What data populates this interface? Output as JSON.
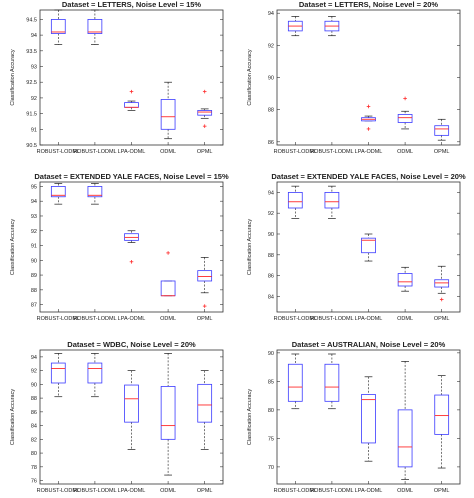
{
  "chart_data": [
    {
      "type": "box",
      "title": "Dataset = LETTERS, Noise Level = 15%",
      "xlabel": "",
      "ylabel": "Classification Accuracy",
      "categories": [
        "ROBUST-LODML",
        "ROBUST-LODML",
        "LPA-ODML",
        "ODML",
        "OPML"
      ],
      "ylim": [
        90.5,
        94.8
      ],
      "yticks": [
        90.5,
        91,
        91.5,
        92,
        92.5,
        93,
        93.5,
        94,
        94.5
      ],
      "boxes": [
        {
          "min": 93.7,
          "q1": 94.05,
          "median": 94.1,
          "q3": 94.5,
          "max": 94.8,
          "outliers": []
        },
        {
          "min": 93.7,
          "q1": 94.05,
          "median": 94.1,
          "q3": 94.5,
          "max": 94.8,
          "outliers": []
        },
        {
          "min": 91.6,
          "q1": 91.7,
          "median": 91.7,
          "q3": 91.85,
          "max": 91.9,
          "outliers": [
            92.2
          ]
        },
        {
          "min": 90.7,
          "q1": 91.0,
          "median": 91.4,
          "q3": 91.95,
          "max": 92.5,
          "outliers": []
        },
        {
          "min": 91.35,
          "q1": 91.45,
          "median": 91.55,
          "q3": 91.6,
          "max": 91.65,
          "outliers": [
            92.2,
            91.1
          ]
        }
      ]
    },
    {
      "type": "box",
      "title": "Dataset = LETTERS, Noise Level = 20%",
      "xlabel": "",
      "ylabel": "Classification Accuracy",
      "categories": [
        "ROBUST-LODML",
        "ROBUST-LODML",
        "LPA-ODML",
        "ODML",
        "OPML"
      ],
      "ylim": [
        85.8,
        94.2
      ],
      "yticks": [
        86,
        88,
        90,
        92,
        94
      ],
      "boxes": [
        {
          "min": 92.6,
          "q1": 92.9,
          "median": 93.2,
          "q3": 93.5,
          "max": 93.8,
          "outliers": []
        },
        {
          "min": 92.6,
          "q1": 92.9,
          "median": 93.2,
          "q3": 93.5,
          "max": 93.8,
          "outliers": []
        },
        {
          "min": 87.3,
          "q1": 87.3,
          "median": 87.4,
          "q3": 87.5,
          "max": 87.6,
          "outliers": [
            88.2,
            86.8
          ]
        },
        {
          "min": 86.8,
          "q1": 87.2,
          "median": 87.5,
          "q3": 87.7,
          "max": 87.9,
          "outliers": [
            88.7
          ]
        },
        {
          "min": 86.1,
          "q1": 86.4,
          "median": 86.8,
          "q3": 87.0,
          "max": 87.4,
          "outliers": []
        }
      ]
    },
    {
      "type": "box",
      "title": "Dataset = EXTENDED YALE FACES, Noise Level = 15%",
      "xlabel": "",
      "ylabel": "Classification Accuracy",
      "categories": [
        "ROBUST-LODML",
        "ROBUST-LODML",
        "LPA-ODML",
        "ODML",
        "OPML"
      ],
      "ylim": [
        86.5,
        95.3
      ],
      "yticks": [
        87,
        88,
        89,
        90,
        91,
        92,
        93,
        94,
        95
      ],
      "boxes": [
        {
          "min": 93.8,
          "q1": 94.3,
          "median": 94.4,
          "q3": 95.0,
          "max": 95.2,
          "outliers": []
        },
        {
          "min": 93.8,
          "q1": 94.3,
          "median": 94.4,
          "q3": 95.0,
          "max": 95.2,
          "outliers": []
        },
        {
          "min": 91.2,
          "q1": 91.35,
          "median": 91.55,
          "q3": 91.8,
          "max": 92.0,
          "outliers": [
            89.9
          ]
        },
        {
          "min": 87.6,
          "q1": 87.6,
          "median": 87.6,
          "q3": 88.6,
          "max": 88.6,
          "outliers": [
            90.5
          ]
        },
        {
          "min": 87.8,
          "q1": 88.6,
          "median": 88.9,
          "q3": 89.3,
          "max": 90.2,
          "outliers": [
            86.9
          ]
        }
      ]
    },
    {
      "type": "box",
      "title": "Dataset = EXTENDED YALE FACES, Noise Level = 20%",
      "xlabel": "",
      "ylabel": "Classification Accuracy",
      "categories": [
        "ROBUST-LODML",
        "ROBUST-LODML",
        "LPA-ODML",
        "ODML",
        "OPML"
      ],
      "ylim": [
        82.5,
        95.0
      ],
      "yticks": [
        84,
        86,
        88,
        90,
        92,
        94
      ],
      "boxes": [
        {
          "min": 91.5,
          "q1": 92.5,
          "median": 93.1,
          "q3": 94.0,
          "max": 94.6,
          "outliers": []
        },
        {
          "min": 91.5,
          "q1": 92.5,
          "median": 93.1,
          "q3": 94.0,
          "max": 94.6,
          "outliers": []
        },
        {
          "min": 87.4,
          "q1": 88.2,
          "median": 89.4,
          "q3": 89.6,
          "max": 90.0,
          "outliers": []
        },
        {
          "min": 84.5,
          "q1": 85.0,
          "median": 85.4,
          "q3": 86.2,
          "max": 86.8,
          "outliers": []
        },
        {
          "min": 84.3,
          "q1": 84.9,
          "median": 85.3,
          "q3": 85.6,
          "max": 86.9,
          "outliers": [
            83.7
          ]
        }
      ]
    },
    {
      "type": "box",
      "title": "Dataset = WDBC, Noise Level = 20%",
      "xlabel": "",
      "ylabel": "Classification Accuracy",
      "categories": [
        "ROBUST-LODML",
        "ROBUST-LODML",
        "LPA-ODML",
        "ODML",
        "OPML"
      ],
      "ylim": [
        75.5,
        95.0
      ],
      "yticks": [
        76,
        78,
        80,
        82,
        84,
        86,
        88,
        90,
        92,
        94
      ],
      "boxes": [
        {
          "min": 88.2,
          "q1": 90.2,
          "median": 92.3,
          "q3": 93.1,
          "max": 94.5,
          "outliers": []
        },
        {
          "min": 88.2,
          "q1": 90.2,
          "median": 92.3,
          "q3": 93.1,
          "max": 94.5,
          "outliers": []
        },
        {
          "min": 80.5,
          "q1": 84.5,
          "median": 87.9,
          "q3": 89.9,
          "max": 92.0,
          "outliers": []
        },
        {
          "min": 76.8,
          "q1": 82.0,
          "median": 84.0,
          "q3": 89.7,
          "max": 94.5,
          "outliers": []
        },
        {
          "min": 80.5,
          "q1": 84.5,
          "median": 87.0,
          "q3": 90.0,
          "max": 92.0,
          "outliers": []
        }
      ]
    },
    {
      "type": "box",
      "title": "Dataset = AUSTRALIAN, Noise Level = 20%",
      "xlabel": "",
      "ylabel": "Classification Accuracy",
      "categories": [
        "ROBUST-LODML",
        "ROBUST-LODML",
        "LPA-ODML",
        "ODML",
        "OPML"
      ],
      "ylim": [
        67.0,
        90.5
      ],
      "yticks": [
        70,
        75,
        80,
        85,
        90
      ],
      "boxes": [
        {
          "min": 80.2,
          "q1": 81.5,
          "median": 84.0,
          "q3": 88.0,
          "max": 89.8,
          "outliers": []
        },
        {
          "min": 80.2,
          "q1": 81.5,
          "median": 84.0,
          "q3": 88.0,
          "max": 89.8,
          "outliers": []
        },
        {
          "min": 71.0,
          "q1": 74.2,
          "median": 81.8,
          "q3": 82.7,
          "max": 85.8,
          "outliers": []
        },
        {
          "min": 67.8,
          "q1": 70.0,
          "median": 73.5,
          "q3": 80.0,
          "max": 88.5,
          "outliers": []
        },
        {
          "min": 69.8,
          "q1": 75.7,
          "median": 79.0,
          "q3": 82.6,
          "max": 86.0,
          "outliers": []
        }
      ]
    }
  ],
  "colors": {
    "box": "#3b3bff",
    "median": "#ff2a2a",
    "whisker": "#1a1a1a",
    "outlier": "#ff2a2a",
    "axis": "#333333",
    "text": "#222222"
  }
}
